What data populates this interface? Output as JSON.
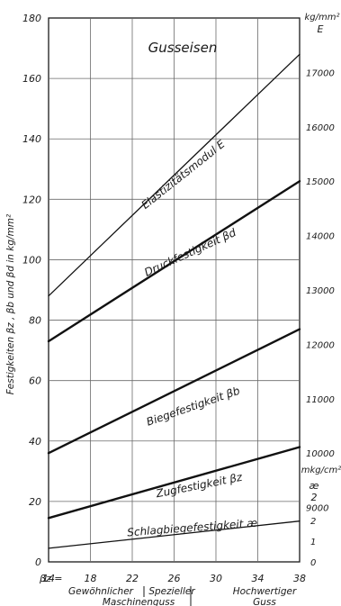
{
  "chart_data": {
    "type": "line",
    "title": "Gusseisen",
    "ylabel": "Festigkeiten βz , βb und βd in kg/mm²",
    "ylim": [
      0,
      180
    ],
    "yticks": [
      0,
      20,
      40,
      60,
      80,
      100,
      120,
      140,
      160,
      180
    ],
    "xlim": [
      14,
      38
    ],
    "xticks": [
      14,
      18,
      22,
      26,
      30,
      34,
      38
    ],
    "x_axis_prefix": "βz =",
    "grid": true,
    "right_axis_E": {
      "unit": "kg/mm²",
      "label": "E",
      "ticks": [
        9000,
        10000,
        11000,
        12000,
        13000,
        14000,
        15000,
        16000,
        17000
      ]
    },
    "right_axis_ae": {
      "unit": "mkg/cm²",
      "label": "æ",
      "label_sub": "2",
      "ticks": [
        0,
        1,
        2
      ]
    },
    "category_bands": [
      {
        "line1": "Gewöhnlicher",
        "line2": "Maschinenguss"
      },
      {
        "line1": "Spezieller",
        "line2": ""
      },
      {
        "line1": "Hochwertiger",
        "line2": "Guss"
      }
    ],
    "series": [
      {
        "name": "Elastizitätsmodul E",
        "x": [
          14,
          38
        ],
        "y": [
          88,
          168
        ],
        "E_values": [
          8800,
          16800
        ],
        "emphasis": "thin"
      },
      {
        "name": "Druckfestigkeit βd",
        "x": [
          14,
          38
        ],
        "y": [
          73,
          126
        ],
        "emphasis": "bold"
      },
      {
        "name": "Biegefestigkeit βb",
        "x": [
          14,
          38
        ],
        "y": [
          36,
          77
        ],
        "emphasis": "bold"
      },
      {
        "name": "Zugfestigkeit βz",
        "x": [
          14,
          38
        ],
        "y": [
          14.5,
          38
        ],
        "emphasis": "bold"
      },
      {
        "name": "Schlagbiegefestigkeit æ",
        "x": [
          14,
          38
        ],
        "y": [
          4.5,
          13.5
        ],
        "ae_values": [
          0.45,
          1.35
        ],
        "emphasis": "thin"
      }
    ]
  }
}
